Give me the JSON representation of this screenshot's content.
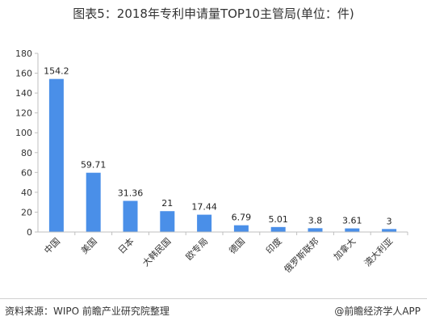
{
  "title": "图表5：2018年专利申请量TOP10主管局(单位：件)",
  "footer": {
    "source": "资料来源：WIPO 前瞻产业研究院整理",
    "brand": "@前瞻经济学人APP"
  },
  "colors": {
    "bar": "#4a8fe8",
    "axis": "#bfbfbf"
  },
  "chart_data": {
    "type": "bar",
    "title": "图表5：2018年专利申请量TOP10主管局(单位：件)",
    "categories": [
      "中国",
      "美国",
      "日本",
      "大韩民国",
      "欧专局",
      "德国",
      "印度",
      "俄罗斯联邦",
      "加拿大",
      "澳大利亚"
    ],
    "values": [
      154.2,
      59.71,
      31.36,
      21,
      17.44,
      6.79,
      5.01,
      3.8,
      3.61,
      3
    ],
    "value_labels": [
      "154.2",
      "59.71",
      "31.36",
      "21",
      "17.44",
      "6.79",
      "5.01",
      "3.8",
      "3.61",
      "3"
    ],
    "yticks": [
      "0",
      "20",
      "40",
      "60",
      "80",
      "100",
      "120",
      "140",
      "160",
      "180"
    ],
    "ylim": [
      0,
      180
    ],
    "xlabel": "",
    "ylabel": "",
    "grid": false,
    "legend": "none"
  }
}
